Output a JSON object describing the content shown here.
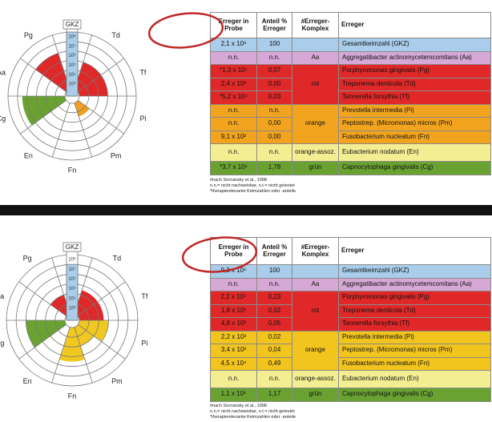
{
  "panels": [
    {
      "wheel": {
        "top_label": "GKZ",
        "scale": [
          "10³",
          "10⁴",
          "10⁵",
          "10⁶",
          "10⁷",
          "10⁸"
        ],
        "gkz_level": 6,
        "sectors": [
          {
            "label": "Td",
            "level": 3,
            "color": "#e02828"
          },
          {
            "label": "Tf",
            "level": 3,
            "color": "#e02828"
          },
          {
            "label": "Pi",
            "level": 0,
            "color": "#f0a020"
          },
          {
            "label": "Pm",
            "level": 1.5,
            "color": "#f0a020"
          },
          {
            "label": "Fn",
            "level": 0,
            "color": "#f0a020"
          },
          {
            "label": "En",
            "level": 0,
            "color": "#f2ea8a"
          },
          {
            "label": "Cg",
            "level": 4.5,
            "color": "#6aa232"
          },
          {
            "label": "Aa",
            "level": 0,
            "color": "#d6a8d6"
          },
          {
            "label": "Pg",
            "level": 4,
            "color": "#e02828"
          }
        ]
      },
      "table": {
        "header": [
          "Erreger in Probe",
          "Anteil % Erreger",
          "#Erreger-Komplex",
          "Erreger"
        ],
        "total": {
          "color": "#a9cdea",
          "values": [
            "2,1 x 10⁸",
            "100",
            "Gesamtkeimzahl (GKZ)"
          ]
        },
        "groups": [
          {
            "complex": "Aa",
            "color": "#d6a8d6",
            "rows": [
              [
                "n.n.",
                "n.n.",
                "Aggregatibacter actinomycetemcomitans (Aa)"
              ]
            ]
          },
          {
            "complex": "rot",
            "color": "#e02828",
            "rows": [
              [
                "*1,3 x 10⁵",
                "0,07",
                "Porphyromonas gingivalis (Pg)"
              ],
              [
                "2,4 x 10³",
                "0,00",
                "Treponema denticola (Td)"
              ],
              [
                "*5,2 x 10⁴",
                "0,03",
                "Tannerella forsythia (Tf)"
              ]
            ]
          },
          {
            "complex": "orange",
            "color": "#f2a41e",
            "rows": [
              [
                "n.n.",
                "n.n.",
                "Prevotella intermedia (Pi)"
              ],
              [
                "n.n.",
                "0,00",
                "Peptostrep. (Micromonas) micros (Pm)"
              ],
              [
                "9,1 x 10²",
                "0,00",
                "Fusobacterium nucleatum (Fn)"
              ]
            ]
          },
          {
            "complex": "orange-assoz.",
            "color": "#f4ee92",
            "rows": [
              [
                "n.n.",
                "n.n.",
                "Eubacterium nodatum (En)"
              ]
            ]
          },
          {
            "complex": "grün",
            "color": "#6aa232",
            "rows": [
              [
                "*3,7 x 10⁶",
                "1,78",
                "Capnocytophaga gingivalis (Cg)"
              ]
            ]
          }
        ]
      },
      "footnotes": [
        "#nach Socransky et al., 1998",
        "n.n.= nicht nachweisbar, n.t.= nicht getestet",
        "*therapierelevante Keimzahlen oder -anteile"
      ]
    },
    {
      "wheel": {
        "top_label": "GKZ",
        "scale": [
          "10³",
          "10⁴",
          "10⁵",
          "10⁶",
          "10⁷",
          "10⁸"
        ],
        "gkz_level": 5,
        "sectors": [
          {
            "label": "Td",
            "level": 2.5,
            "color": "#e02828"
          },
          {
            "label": "Tf",
            "level": 2.5,
            "color": "#e02828"
          },
          {
            "label": "Pi",
            "level": 3,
            "color": "#f0c820"
          },
          {
            "label": "Pm",
            "level": 2,
            "color": "#f0c820"
          },
          {
            "label": "Fn",
            "level": 3.5,
            "color": "#f0c820"
          },
          {
            "label": "En",
            "level": 0,
            "color": "#f2ea8a"
          },
          {
            "label": "Cg",
            "level": 4,
            "color": "#6aa232"
          },
          {
            "label": "Aa",
            "level": 0,
            "color": "#d6a8d6"
          },
          {
            "label": "Pg",
            "level": 2,
            "color": "#e02828"
          }
        ]
      },
      "table": {
        "header": [
          "Erreger in Probe",
          "Anteil % Erreger",
          "#Erreger-Komplex",
          "Erreger"
        ],
        "total": {
          "color": "#a9cdea",
          "values": [
            "9,3 x 10⁶",
            "100",
            "Gesamtkeimzahl (GKZ)"
          ]
        },
        "groups": [
          {
            "complex": "Aa",
            "color": "#d6a8d6",
            "rows": [
              [
                "n.n.",
                "n.n.",
                "Aggregatibacter actinomycetemcomitans (Aa)"
              ]
            ]
          },
          {
            "complex": "rot",
            "color": "#e02828",
            "rows": [
              [
                "2,2 x 10⁴",
                "0,23",
                "Porphyromonas gingivalis (Pg)"
              ],
              [
                "1,8 x 10³",
                "0,02",
                "Treponema denticola (Td)"
              ],
              [
                "4,8 x 10³",
                "0,05",
                "Tannerella forsythia (Tf)"
              ]
            ]
          },
          {
            "complex": "orange",
            "color": "#f2c41e",
            "rows": [
              [
                "2,2 x 10³",
                "0,02",
                "Prevotella intermedia (Pi)"
              ],
              [
                "3,4 x 10³",
                "0,04",
                "Peptostrep. (Micromonas) micros (Pm)"
              ],
              [
                "4,5 x 10⁴",
                "0,49",
                "Fusobacterium nucleatum (Fn)"
              ]
            ]
          },
          {
            "complex": "orange-assoz.",
            "color": "#f4ee92",
            "rows": [
              [
                "n.n.",
                "n.n.",
                "Eubacterium nodatum (En)"
              ]
            ]
          },
          {
            "complex": "grün",
            "color": "#6aa232",
            "rows": [
              [
                "1,1 x 10⁵",
                "1,17",
                "Capnocytophaga gingivalis (Cg)"
              ]
            ]
          }
        ]
      },
      "footnotes": [
        "#nach Socransky et al., 1998",
        "n.n.= nicht nachweisbar, n.t.= nicht getestet",
        "*therapierelevante Keimzahlen oder -anteile"
      ]
    }
  ]
}
